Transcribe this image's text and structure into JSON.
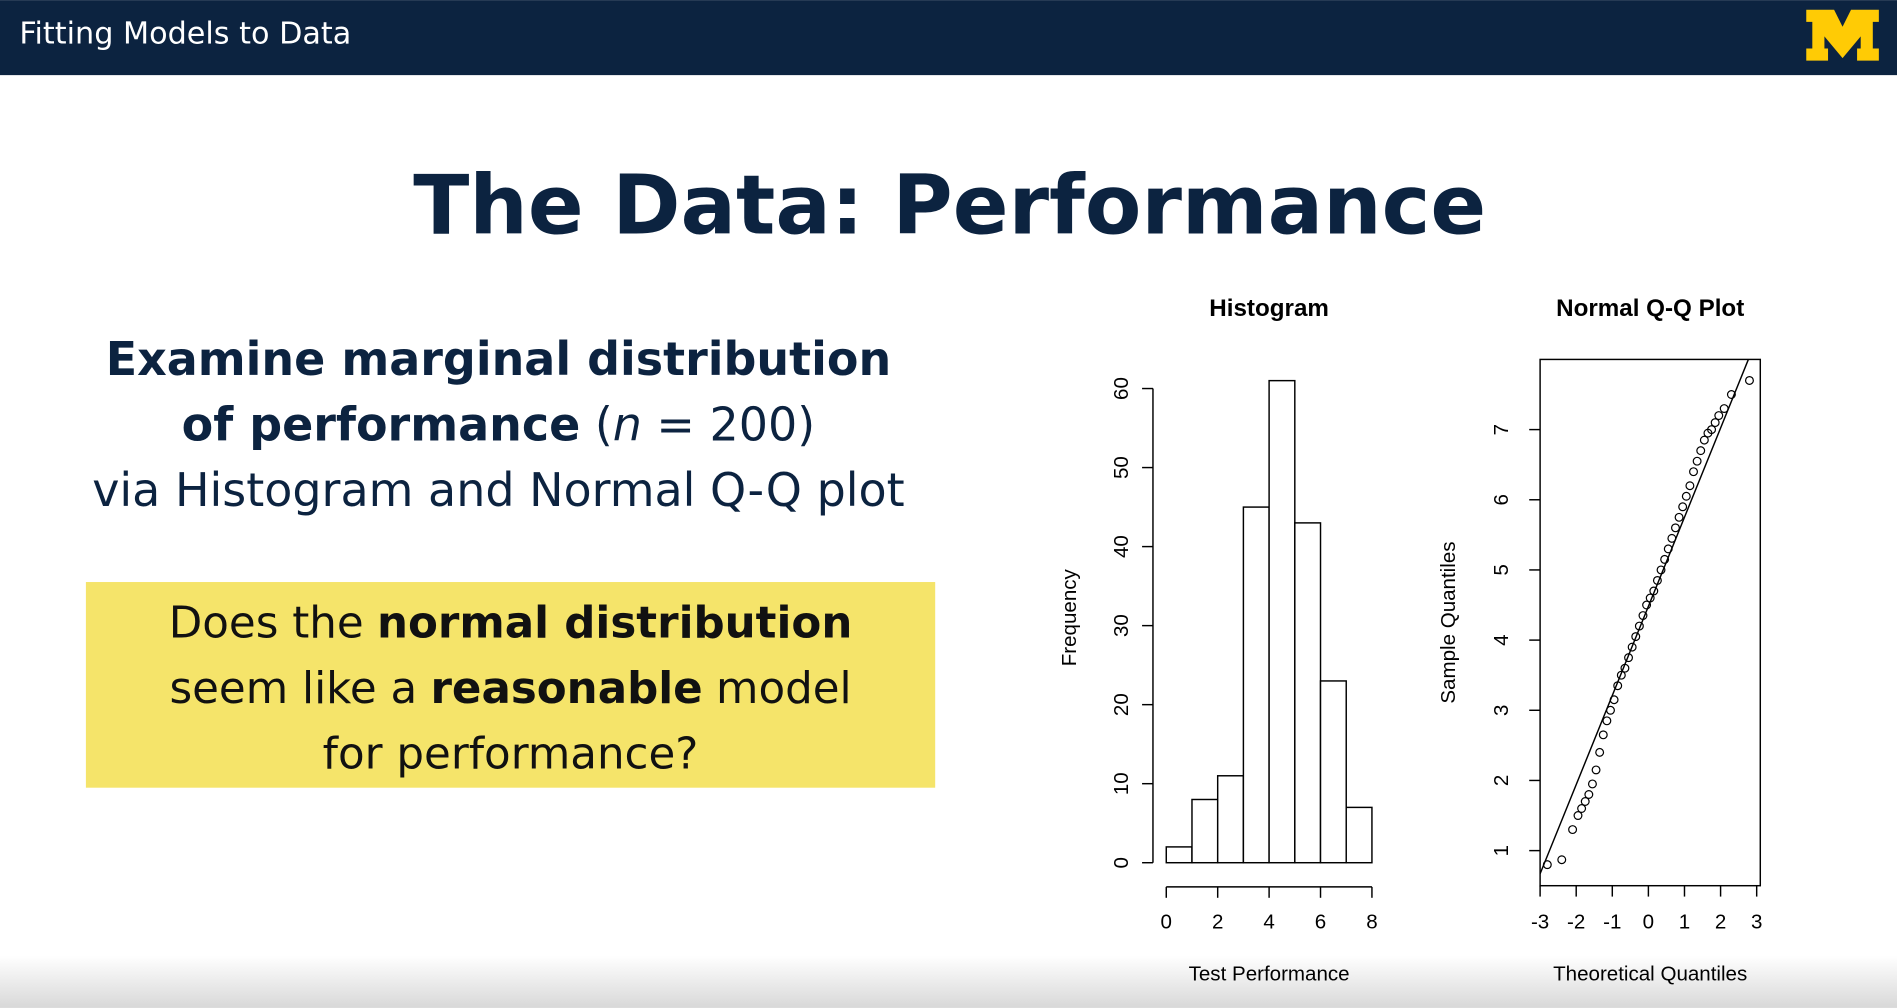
{
  "header": {
    "title": "Fitting Models to Data"
  },
  "slide": {
    "title": "The Data: Performance",
    "intro": {
      "line1": "Examine marginal distribution",
      "line2_bold": "of performance",
      "line2_open": "(",
      "line2_n": "n",
      "line2_rest": "= 200)",
      "line3": "via Histogram and Normal Q-Q plot"
    },
    "question": {
      "line1_a": "Does the",
      "line1_b": "normal distribution",
      "line2_a": "seem like a",
      "line2_b": "reasonable",
      "line2_c": "model",
      "line3": "for performance?"
    }
  },
  "chart_data": [
    {
      "type": "histogram",
      "title": "Histogram",
      "x_label": "Test Performance",
      "y_label": "Frequency",
      "bins": [
        0,
        1,
        2,
        3,
        4,
        5,
        6,
        7,
        8
      ],
      "counts": [
        2,
        8,
        11,
        45,
        61,
        43,
        23,
        7
      ],
      "color": "#ffffff",
      "xlim": [
        0,
        8
      ],
      "xticks": [
        0,
        2,
        4,
        6,
        8
      ],
      "ylim": [
        0,
        62
      ],
      "yticks": [
        0,
        10,
        20,
        30,
        40,
        50,
        60
      ]
    },
    {
      "type": "qq",
      "title": "Normal Q-Q Plot",
      "x_label": "Theoretical Quantiles",
      "y_label": "Sample Quantiles",
      "x": [
        -2.8,
        -2.4,
        -2.1,
        -1.95,
        -1.85,
        -1.75,
        -1.65,
        -1.55,
        -1.45,
        -1.35,
        -1.25,
        -1.15,
        -1.05,
        -0.95,
        -0.85,
        -0.75,
        -0.65,
        -0.55,
        -0.45,
        -0.35,
        -0.25,
        -0.15,
        -0.05,
        0.05,
        0.15,
        0.25,
        0.35,
        0.45,
        0.55,
        0.65,
        0.75,
        0.85,
        0.95,
        1.05,
        1.15,
        1.25,
        1.35,
        1.45,
        1.55,
        1.65,
        1.75,
        1.85,
        1.95,
        2.1,
        2.3,
        2.8
      ],
      "y": [
        0.8,
        0.87,
        1.3,
        1.5,
        1.6,
        1.7,
        1.8,
        1.95,
        2.15,
        2.4,
        2.65,
        2.85,
        3.0,
        3.15,
        3.35,
        3.5,
        3.6,
        3.75,
        3.9,
        4.05,
        4.2,
        4.35,
        4.5,
        4.6,
        4.7,
        4.85,
        5.0,
        5.15,
        5.3,
        5.45,
        5.6,
        5.75,
        5.9,
        6.05,
        6.2,
        6.4,
        6.55,
        6.7,
        6.85,
        6.95,
        7.0,
        7.1,
        7.2,
        7.3,
        7.5,
        7.7
      ],
      "reference_line": {
        "x": [
          -3,
          2.77
        ],
        "y": [
          0.67,
          8.0
        ]
      },
      "color": "#000000",
      "xlim": [
        -3.0,
        3.1
      ],
      "xticks": [
        -3,
        -2,
        -1,
        0,
        1,
        2,
        3
      ],
      "ylim": [
        0.5,
        8.0
      ],
      "yticks": [
        1,
        2,
        3,
        4,
        5,
        6,
        7
      ]
    }
  ]
}
